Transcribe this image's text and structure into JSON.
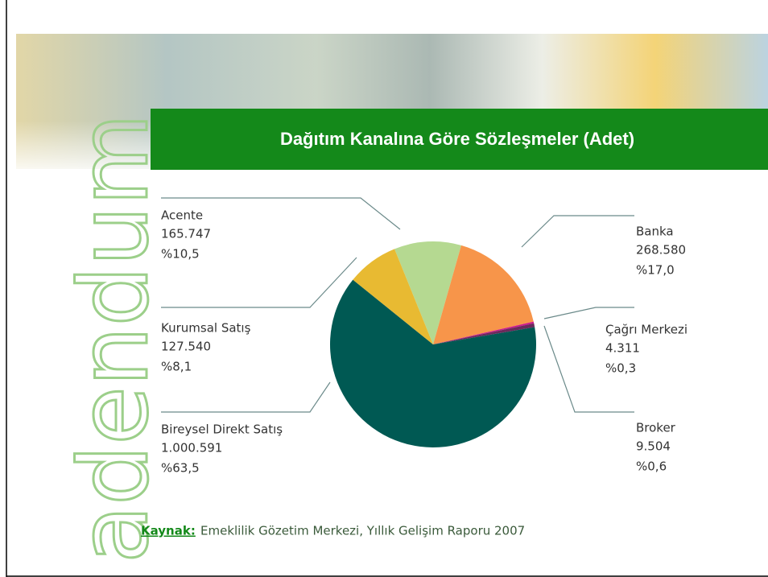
{
  "chart_data": {
    "type": "pie",
    "title": "Dağıtım Kanalına Göre Sözleşmeler (Adet)",
    "categories": [
      "Acente",
      "Banka",
      "Çağrı Merkezi",
      "Broker",
      "Bireysel Direkt Satış",
      "Kurumsal Satış"
    ],
    "values": [
      165747,
      268580,
      4311,
      9504,
      1000591,
      127540
    ],
    "value_labels": [
      "165.747",
      "268.580",
      "4.311",
      "9.504",
      "1.000.591",
      "127.540"
    ],
    "percent_labels": [
      "%10,5",
      "%17,0",
      "%0,3",
      "%0,6",
      "%63,5",
      "%8,1"
    ],
    "colors": [
      "#b5d991",
      "#f7954a",
      "#cc1a8c",
      "#6b2a5c",
      "#005953",
      "#e8ba32"
    ]
  },
  "source_label": "Kaynak:",
  "source": "Emeklilik Gözetim Merkezi, Yıllık Gelişim Raporu 2007",
  "logo": "adendum"
}
